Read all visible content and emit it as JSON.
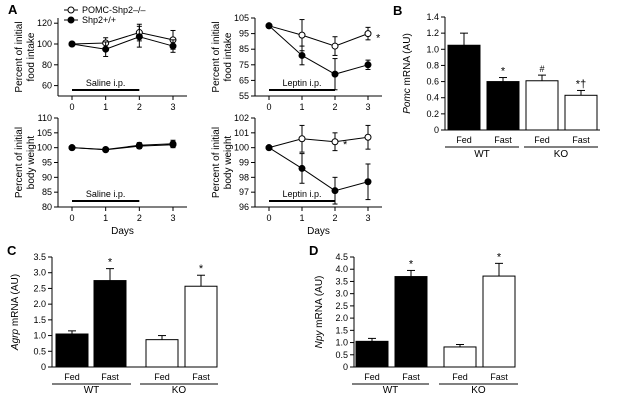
{
  "chart_data": [
    {
      "type": "line",
      "panel": "A",
      "ylabel": [
        "Percent of initial",
        "food intake"
      ],
      "x": [
        0,
        1,
        2,
        3
      ],
      "xticks": [
        "0",
        "1",
        "2",
        "3"
      ],
      "ylim": [
        50,
        125
      ],
      "yticks": [
        60,
        80,
        100,
        120
      ],
      "shade_label": "Saline i.p.",
      "shade_range": [
        0,
        2
      ],
      "series": [
        {
          "name": "POMC-Shp2–/–",
          "marker": "open",
          "values": [
            100,
            101,
            111,
            104
          ],
          "errors": [
            0,
            5,
            8,
            9
          ]
        },
        {
          "name": "Shp2+/+",
          "marker": "filled",
          "values": [
            100,
            95,
            107,
            98
          ],
          "errors": [
            0,
            7,
            10,
            6
          ]
        }
      ],
      "legend": [
        "POMC-Shp2–/–",
        "Shp2+/+"
      ],
      "annotations": []
    },
    {
      "type": "line",
      "panel": "",
      "ylabel": [
        "Percent of initial",
        "food intake"
      ],
      "x": [
        0,
        1,
        2,
        3
      ],
      "xticks": [
        "0",
        "1",
        "2",
        "3"
      ],
      "ylim": [
        55,
        105
      ],
      "yticks": [
        55,
        65,
        75,
        85,
        95,
        105
      ],
      "shade_label": "Leptin i.p.",
      "shade_range": [
        0,
        2
      ],
      "series": [
        {
          "name": "POMC-Shp2–/–",
          "marker": "open",
          "values": [
            100,
            94,
            87,
            95
          ],
          "errors": [
            0,
            10,
            6,
            4
          ]
        },
        {
          "name": "Shp2+/+",
          "marker": "filled",
          "values": [
            100,
            81,
            69,
            75
          ],
          "errors": [
            0,
            6,
            10,
            3
          ]
        }
      ],
      "annotations": [
        {
          "text": "*",
          "x": 3,
          "y": 93
        }
      ]
    },
    {
      "type": "line",
      "panel": "",
      "ylabel": [
        "Percent of initial",
        "body weight"
      ],
      "xlabel": "Days",
      "x": [
        0,
        1,
        2,
        3
      ],
      "xticks": [
        "0",
        "1",
        "2",
        "3"
      ],
      "ylim": [
        80,
        110
      ],
      "yticks": [
        80,
        85,
        90,
        95,
        100,
        105,
        110
      ],
      "shade_label": "Saline i.p.",
      "shade_range": [
        0,
        2
      ],
      "series": [
        {
          "name": "POMC-Shp2–/–",
          "marker": "open",
          "values": [
            100,
            99.3,
            100.5,
            101
          ],
          "errors": [
            0,
            0.4,
            0.8,
            1
          ]
        },
        {
          "name": "Shp2+/+",
          "marker": "filled",
          "values": [
            100,
            99.4,
            100.8,
            101.3
          ],
          "errors": [
            0,
            0.4,
            0.9,
            1.2
          ]
        }
      ],
      "annotations": []
    },
    {
      "type": "line",
      "panel": "",
      "ylabel": [
        "Percent of initial",
        "body weight"
      ],
      "xlabel": "Days",
      "x": [
        0,
        1,
        2,
        3
      ],
      "xticks": [
        "0",
        "1",
        "2",
        "3"
      ],
      "ylim": [
        96,
        102
      ],
      "yticks": [
        96,
        97,
        98,
        99,
        100,
        101,
        102
      ],
      "shade_label": "Leptin i.p.",
      "shade_range": [
        0,
        2
      ],
      "series": [
        {
          "name": "POMC-Shp2–/–",
          "marker": "open",
          "values": [
            100,
            100.6,
            100.4,
            100.7
          ],
          "errors": [
            0,
            0.9,
            0.6,
            0.8
          ]
        },
        {
          "name": "Shp2+/+",
          "marker": "filled",
          "values": [
            100,
            98.6,
            97.1,
            97.7
          ],
          "errors": [
            0,
            1.0,
            0.9,
            1.2
          ]
        }
      ],
      "annotations": [
        {
          "text": "*",
          "x": 2,
          "y": 100.3
        }
      ]
    },
    {
      "type": "bar",
      "panel": "B",
      "ylabel_italic": "Pomc",
      "ylabel_rest": " mRNA (AU)",
      "ylim": [
        0,
        1.4
      ],
      "yticks": [
        "0",
        "0.2",
        "0.4",
        "0.6",
        "0.8",
        "1.0",
        "1.2",
        "1.4"
      ],
      "categories": [
        "Fed",
        "Fast",
        "Fed",
        "Fast"
      ],
      "fills": [
        "filled",
        "filled",
        "open",
        "open"
      ],
      "values": [
        1.05,
        0.6,
        0.61,
        0.43
      ],
      "errors": [
        0.15,
        0.05,
        0.07,
        0.06
      ],
      "marks": [
        "",
        "*",
        "#",
        "*†"
      ],
      "groups": [
        "WT",
        "KO"
      ]
    },
    {
      "type": "bar",
      "panel": "C",
      "ylabel_italic": "Agrp",
      "ylabel_rest": " mRNA (AU)",
      "ylim": [
        0,
        3.5
      ],
      "yticks": [
        "0",
        "0.5",
        "1.0",
        "1.5",
        "2.0",
        "2.5",
        "3.0",
        "3.5"
      ],
      "categories": [
        "Fed",
        "Fast",
        "Fed",
        "Fast"
      ],
      "fills": [
        "filled",
        "filled",
        "open",
        "open"
      ],
      "values": [
        1.05,
        2.75,
        0.87,
        2.57
      ],
      "errors": [
        0.1,
        0.38,
        0.13,
        0.35
      ],
      "marks": [
        "",
        "*",
        "",
        "*"
      ],
      "groups": [
        "WT",
        "KO"
      ]
    },
    {
      "type": "bar",
      "panel": "D",
      "ylabel_italic": "Npy",
      "ylabel_rest": " mRNA (AU)",
      "ylim": [
        0,
        4.5
      ],
      "yticks": [
        "0",
        "0.5",
        "1.0",
        "1.5",
        "2.0",
        "2.5",
        "3.0",
        "3.5",
        "4.0",
        "4.5"
      ],
      "categories": [
        "Fed",
        "Fast",
        "Fed",
        "Fast"
      ],
      "fills": [
        "filled",
        "filled",
        "open",
        "open"
      ],
      "values": [
        1.05,
        3.7,
        0.82,
        3.72
      ],
      "errors": [
        0.12,
        0.25,
        0.1,
        0.52
      ],
      "marks": [
        "",
        "*",
        "",
        "*"
      ],
      "groups": [
        "WT",
        "KO"
      ]
    }
  ]
}
